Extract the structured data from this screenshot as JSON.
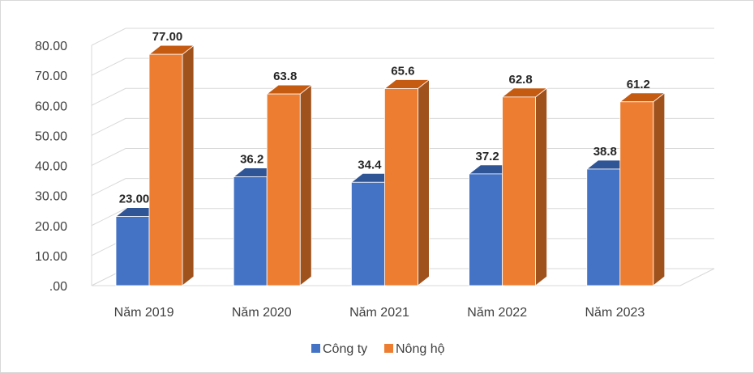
{
  "chart_data": {
    "type": "bar",
    "title": "",
    "xlabel": "",
    "ylabel": "",
    "categories": [
      "Năm 2019",
      "Năm 2020",
      "Năm 2021",
      "Năm 2022",
      "Năm 2023"
    ],
    "series": [
      {
        "name": "Công ty",
        "values": [
          23.0,
          36.2,
          34.4,
          37.2,
          38.8
        ],
        "labels": [
          "23.00",
          "36.2",
          "34.4",
          "37.2",
          "38.8"
        ],
        "color": "#4472c4",
        "top_color": "#2f5597",
        "side_color": "#2f5597"
      },
      {
        "name": "Nông hộ",
        "values": [
          77.0,
          63.8,
          65.6,
          62.8,
          61.2
        ],
        "labels": [
          "77.00",
          "63.8",
          "65.6",
          "62.8",
          "61.2"
        ],
        "color": "#ed7d31",
        "top_color": "#c55a11",
        "side_color": "#a0521d"
      }
    ],
    "ylim": [
      0,
      80
    ],
    "yticks": [
      ".00",
      "10.00",
      "20.00",
      "30.00",
      "40.00",
      "50.00",
      "60.00",
      "70.00",
      "80.00"
    ],
    "grid": true,
    "three_d": true,
    "legend_position": "bottom"
  }
}
